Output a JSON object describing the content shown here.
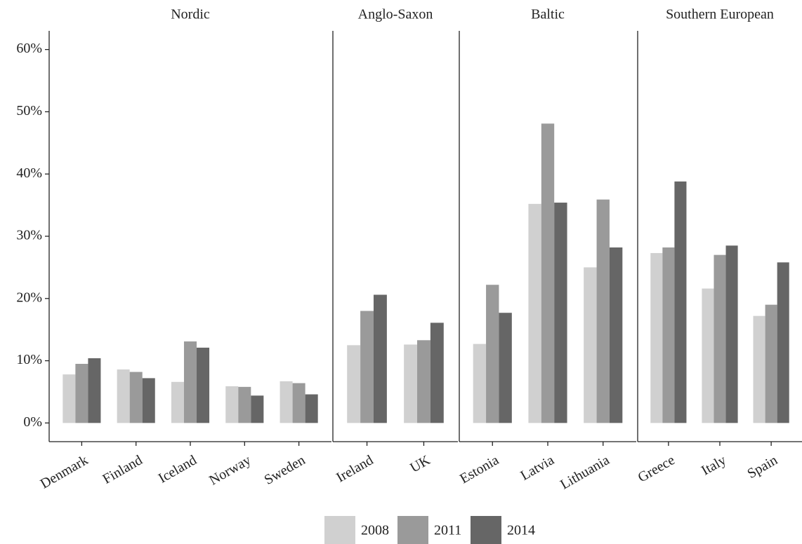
{
  "chart_data": [
    {
      "type": "bar",
      "title": "Nordic",
      "categories": [
        "Denmark",
        "Finland",
        "Iceland",
        "Norway",
        "Sweden"
      ],
      "series": [
        {
          "name": "2008",
          "color": "#d0d0d0",
          "values": [
            7.8,
            8.6,
            6.6,
            5.9,
            6.7
          ]
        },
        {
          "name": "2011",
          "color": "#9a9a9a",
          "values": [
            9.5,
            8.2,
            13.1,
            5.8,
            6.4
          ]
        },
        {
          "name": "2014",
          "color": "#666666",
          "values": [
            10.4,
            7.2,
            12.1,
            4.4,
            4.6
          ]
        }
      ],
      "ylim": [
        -3,
        63
      ],
      "yticks": [
        {
          "value": 0,
          "label": "0%"
        },
        {
          "value": 10,
          "label": "10%"
        },
        {
          "value": 20,
          "label": "20%"
        },
        {
          "value": 30,
          "label": "30%"
        },
        {
          "value": 40,
          "label": "40%"
        },
        {
          "value": 50,
          "label": "50%"
        },
        {
          "value": 60,
          "label": "60%"
        }
      ]
    },
    {
      "type": "bar",
      "title": "Anglo-Saxon",
      "categories": [
        "Ireland",
        "UK"
      ],
      "series": [
        {
          "color": "#d0d0d0",
          "values": [
            12.5,
            12.6
          ]
        },
        {
          "color": "#9a9a9a",
          "values": [
            18.0,
            13.3
          ]
        },
        {
          "color": "#666666",
          "values": [
            20.6,
            16.1
          ]
        }
      ],
      "ylim": [
        -3,
        63
      ]
    },
    {
      "type": "bar",
      "title": "Baltic",
      "categories": [
        "Estonia",
        "Latvia",
        "Lithuania"
      ],
      "series": [
        {
          "color": "#d0d0d0",
          "values": [
            12.7,
            35.2,
            25.0
          ]
        },
        {
          "color": "#9a9a9a",
          "values": [
            22.2,
            48.1,
            35.9
          ]
        },
        {
          "color": "#666666",
          "values": [
            17.7,
            35.4,
            28.2
          ]
        }
      ],
      "ylim": [
        -3,
        63
      ]
    },
    {
      "type": "bar",
      "title": "Southern European",
      "categories": [
        "Greece",
        "Italy",
        "Spain"
      ],
      "series": [
        {
          "color": "#d0d0d0",
          "values": [
            27.3,
            21.6,
            17.2
          ]
        },
        {
          "color": "#9a9a9a",
          "values": [
            28.2,
            27.0,
            19.0
          ]
        },
        {
          "color": "#666666",
          "values": [
            38.8,
            28.5,
            25.8
          ]
        }
      ],
      "ylim": [
        -3,
        63
      ]
    }
  ]
}
